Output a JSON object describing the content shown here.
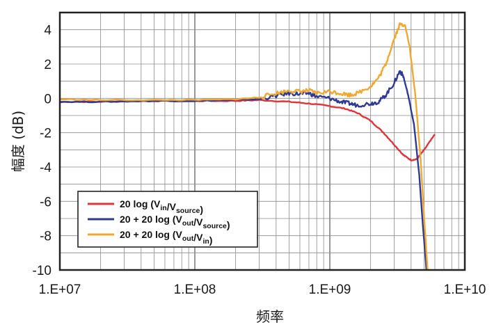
{
  "chart_data": {
    "type": "line",
    "xlabel": "频率",
    "ylabel": "幅度 (dB)",
    "xscale": "log",
    "xlim": [
      10000000,
      10000000000
    ],
    "ylim": [
      -10,
      5
    ],
    "grid": true,
    "legend_position": "bottom-left",
    "x_ticks": [
      {
        "value": 10000000,
        "label": "1.E+07"
      },
      {
        "value": 100000000,
        "label": "1.E+08"
      },
      {
        "value": 1000000000,
        "label": "1.E+09"
      },
      {
        "value": 10000000000,
        "label": "1.E+10"
      }
    ],
    "y_ticks": [
      {
        "value": 4,
        "label": "4"
      },
      {
        "value": 2,
        "label": "2"
      },
      {
        "value": 0,
        "label": "0"
      },
      {
        "value": -2,
        "label": "-2"
      },
      {
        "value": -4,
        "label": "-4"
      },
      {
        "value": -6,
        "label": "-6"
      },
      {
        "value": -8,
        "label": "-8"
      },
      {
        "value": -10,
        "label": "-10"
      }
    ],
    "series": [
      {
        "name": "20 log (Vin/Vsource)",
        "legend": {
          "main": "20 log (V",
          "sub1": "in",
          "mid": "/V",
          "sub2": "source",
          "end": ")"
        },
        "color": "#e0343c",
        "points": [
          [
            10000000,
            -0.2
          ],
          [
            20000000,
            -0.2
          ],
          [
            50000000,
            -0.15
          ],
          [
            100000000,
            -0.15
          ],
          [
            200000000,
            -0.15
          ],
          [
            300000000,
            -0.1
          ],
          [
            500000000,
            -0.2
          ],
          [
            700000000,
            -0.3
          ],
          [
            1000000000,
            -0.45
          ],
          [
            1300000000,
            -0.6
          ],
          [
            1600000000,
            -0.85
          ],
          [
            2000000000,
            -1.3
          ],
          [
            2500000000,
            -2.0
          ],
          [
            3000000000,
            -2.7
          ],
          [
            3500000000,
            -3.3
          ],
          [
            4000000000,
            -3.6
          ],
          [
            4400000000,
            -3.55
          ],
          [
            5000000000,
            -3.0
          ],
          [
            6000000000,
            -2.1
          ]
        ]
      },
      {
        "name": "20 + 20 log (Vout/Vsource)",
        "legend": {
          "main": "20 + 20 log (V",
          "sub1": "out",
          "mid": "/V",
          "sub2": "source",
          "end": ")"
        },
        "color": "#2e3a94",
        "points": [
          [
            10000000,
            -0.2
          ],
          [
            20000000,
            -0.2
          ],
          [
            50000000,
            -0.15
          ],
          [
            100000000,
            -0.15
          ],
          [
            200000000,
            -0.1
          ],
          [
            300000000,
            -0.05
          ],
          [
            400000000,
            0.15
          ],
          [
            500000000,
            0.3
          ],
          [
            600000000,
            0.25
          ],
          [
            700000000,
            0.3
          ],
          [
            800000000,
            0.1
          ],
          [
            1000000000,
            0.0
          ],
          [
            1200000000,
            -0.2
          ],
          [
            1400000000,
            -0.3
          ],
          [
            1600000000,
            -0.4
          ],
          [
            2000000000,
            -0.3
          ],
          [
            2300000000,
            -0.2
          ],
          [
            2600000000,
            0.2
          ],
          [
            3000000000,
            0.9
          ],
          [
            3300000000,
            1.6
          ],
          [
            3500000000,
            1.3
          ],
          [
            3800000000,
            0.2
          ],
          [
            4200000000,
            -1.5
          ],
          [
            4600000000,
            -4.5
          ],
          [
            4900000000,
            -7.5
          ],
          [
            5200000000,
            -10.0
          ]
        ]
      },
      {
        "name": "20 + 20 log (Vout/Vin)",
        "legend": {
          "main": "20 + 20 log (V",
          "sub1": "out",
          "mid": "/V",
          "sub2": "in",
          "end": ")"
        },
        "color": "#f0a830",
        "points": [
          [
            10000000,
            -0.05
          ],
          [
            20000000,
            -0.1
          ],
          [
            50000000,
            -0.1
          ],
          [
            100000000,
            -0.1
          ],
          [
            200000000,
            -0.05
          ],
          [
            300000000,
            0.05
          ],
          [
            400000000,
            0.3
          ],
          [
            500000000,
            0.45
          ],
          [
            600000000,
            0.4
          ],
          [
            700000000,
            0.45
          ],
          [
            800000000,
            0.3
          ],
          [
            1000000000,
            0.4
          ],
          [
            1200000000,
            0.3
          ],
          [
            1400000000,
            0.2
          ],
          [
            1600000000,
            0.3
          ],
          [
            2000000000,
            0.7
          ],
          [
            2300000000,
            1.2
          ],
          [
            2600000000,
            2.0
          ],
          [
            3000000000,
            3.5
          ],
          [
            3300000000,
            4.3
          ],
          [
            3600000000,
            4.3
          ],
          [
            3900000000,
            3.0
          ],
          [
            4300000000,
            0.2
          ],
          [
            4700000000,
            -3.5
          ],
          [
            5000000000,
            -7.0
          ],
          [
            5300000000,
            -10.0
          ]
        ]
      }
    ]
  }
}
